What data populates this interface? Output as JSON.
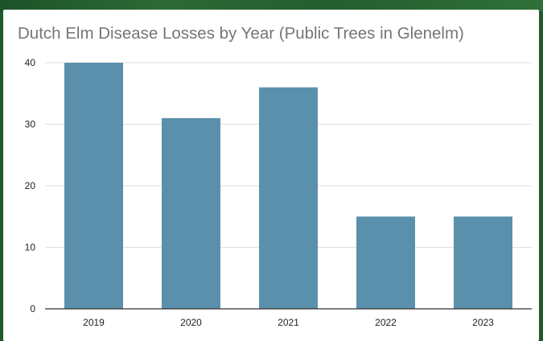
{
  "chart_data": {
    "type": "bar",
    "title": "Dutch Elm Disease Losses by Year (Public Trees in Glenelm)",
    "categories": [
      "2019",
      "2020",
      "2021",
      "2022",
      "2023"
    ],
    "values": [
      40,
      31,
      36,
      15,
      15
    ],
    "ylim": [
      0,
      40
    ],
    "yticks": [
      0,
      10,
      20,
      30,
      40
    ],
    "xlabel": "",
    "ylabel": "",
    "grid": true,
    "legend": "none",
    "colors": {
      "bar": "#5b90ad",
      "grid": "#dddddd",
      "axis": "#333333",
      "title": "#757575",
      "background": "#ffffff"
    }
  }
}
